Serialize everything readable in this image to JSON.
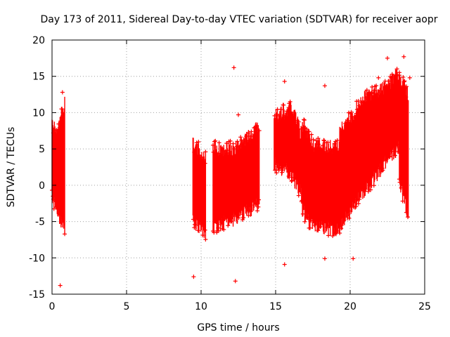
{
  "chart_data": {
    "type": "scatter",
    "title": "Day 173 of 2011, Sidereal Day-to-day VTEC variation (SDTVAR) for receiver aopr",
    "xlabel": "GPS time / hours",
    "ylabel": "SDTVAR / TECUs",
    "xlim": [
      0,
      25
    ],
    "ylim": [
      -15,
      20
    ],
    "grid": true,
    "legend": "none",
    "marker": "plus",
    "color": "#ff0000",
    "x_ticks": [
      0,
      5,
      10,
      15,
      20,
      25
    ],
    "y_ticks": [
      -15,
      -10,
      -5,
      0,
      5,
      10,
      15,
      20
    ],
    "x_tick_labels": [
      "0",
      "5",
      "10",
      "15",
      "20",
      "25"
    ],
    "y_tick_labels": [
      "-15",
      "-10",
      "-5",
      "0",
      "5",
      "10",
      "15",
      "20"
    ],
    "envelope_segments": [
      {
        "x0": 0.0,
        "x1": 0.35,
        "low0": -2.0,
        "low1": -4.0,
        "high0": 9.0,
        "high1": 8.0
      },
      {
        "x0": 0.35,
        "x1": 0.85,
        "low0": -4.0,
        "low1": -6.5,
        "high0": 8.0,
        "high1": 12.0
      },
      {
        "x0": 9.45,
        "x1": 10.3,
        "low0": -5.5,
        "low1": -7.0,
        "high0": 6.0,
        "high1": 4.5
      },
      {
        "x0": 10.8,
        "x1": 12.4,
        "low0": -6.0,
        "low1": -5.0,
        "high0": 5.5,
        "high1": 5.5
      },
      {
        "x0": 12.4,
        "x1": 13.9,
        "low0": -5.0,
        "low1": -3.0,
        "high0": 5.5,
        "high1": 8.5
      },
      {
        "x0": 14.9,
        "x1": 16.1,
        "low0": 2.5,
        "low1": 1.0,
        "high0": 10.0,
        "high1": 11.0
      },
      {
        "x0": 16.1,
        "x1": 16.8,
        "low0": 1.0,
        "low1": -2.0,
        "high0": 11.0,
        "high1": 7.0
      },
      {
        "x0": 16.8,
        "x1": 17.5,
        "low0": -4.0,
        "low1": -6.0,
        "high0": 9.0,
        "high1": 6.0
      },
      {
        "x0": 17.5,
        "x1": 19.3,
        "low0": -6.0,
        "low1": -6.5,
        "high0": 6.0,
        "high1": 5.5
      },
      {
        "x0": 19.3,
        "x1": 21.0,
        "low0": -6.0,
        "low1": -1.0,
        "high0": 8.0,
        "high1": 12.5
      },
      {
        "x0": 21.0,
        "x1": 22.5,
        "low0": -1.0,
        "low1": 3.0,
        "high0": 12.5,
        "high1": 14.0
      },
      {
        "x0": 22.5,
        "x1": 23.3,
        "low0": 3.0,
        "low1": 5.0,
        "high0": 14.0,
        "high1": 16.0
      },
      {
        "x0": 23.3,
        "x1": 23.9,
        "low0": 0.0,
        "low1": -4.5,
        "high0": 15.5,
        "high1": 13.0
      }
    ],
    "outliers": [
      {
        "x": 0.55,
        "y": -13.8
      },
      {
        "x": 0.7,
        "y": 12.8
      },
      {
        "x": 9.5,
        "y": -12.6
      },
      {
        "x": 12.2,
        "y": 16.2
      },
      {
        "x": 12.3,
        "y": -13.2
      },
      {
        "x": 12.5,
        "y": 9.7
      },
      {
        "x": 15.6,
        "y": -10.9
      },
      {
        "x": 15.6,
        "y": 14.3
      },
      {
        "x": 18.3,
        "y": 13.7
      },
      {
        "x": 18.3,
        "y": -10.1
      },
      {
        "x": 20.2,
        "y": -10.1
      },
      {
        "x": 21.9,
        "y": 14.8
      },
      {
        "x": 22.5,
        "y": 17.5
      },
      {
        "x": 23.6,
        "y": 17.7
      },
      {
        "x": 24.0,
        "y": 14.8
      }
    ]
  }
}
